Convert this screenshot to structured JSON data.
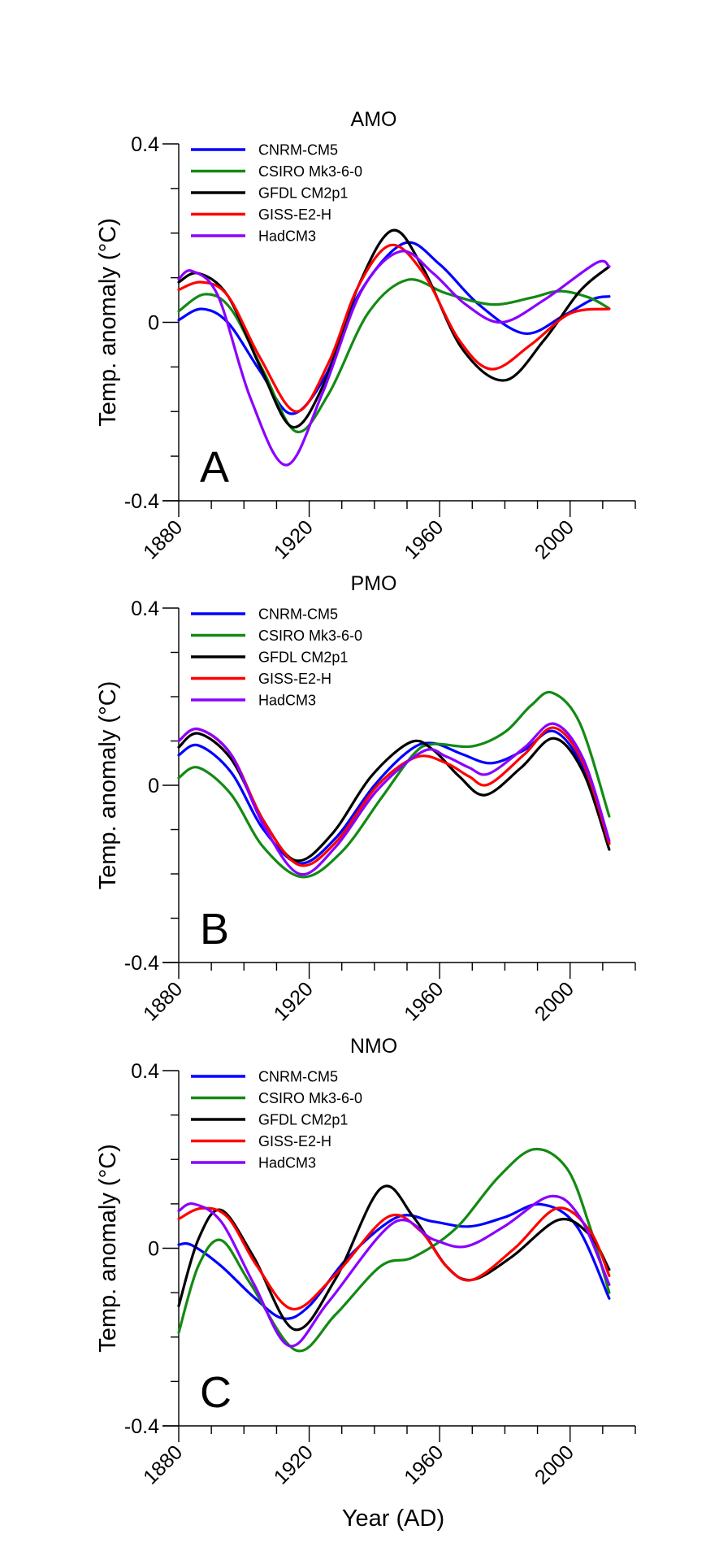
{
  "figure": {
    "shared_xlabel": "Year (AD)",
    "ylabel": "Temp. anomaly (°C)"
  },
  "chart_data": [
    {
      "type": "line",
      "panel_letter": "A",
      "title": "AMO",
      "xlabel": "Year (AD)",
      "ylabel": "Temp. anomaly (°C)",
      "xlim": [
        1880,
        2020
      ],
      "ylim": [
        -0.4,
        0.4
      ],
      "xticks": [
        1880,
        1920,
        1960,
        2000
      ],
      "xtick_labels": [
        "1880",
        "1920",
        "1960",
        "2000"
      ],
      "x_minor_step": 10,
      "yticks": [
        0.4,
        0,
        -0.4
      ],
      "ytick_labels": [
        "0.4",
        "0",
        "-0.4"
      ],
      "y_minor_step": 0.1,
      "grid": false,
      "legend_position": "top-left",
      "series": [
        {
          "name": "CNRM-CM5",
          "color": "#0000ff",
          "x": [
            1880,
            1887,
            1895,
            1905,
            1914.5,
            1925,
            1935,
            1949,
            1960,
            1972,
            1986,
            1998,
            2007,
            2012
          ],
          "y": [
            0.005,
            0.03,
            0.0,
            -0.11,
            -0.205,
            -0.12,
            0.06,
            0.177,
            0.13,
            0.04,
            -0.025,
            0.015,
            0.052,
            0.058
          ]
        },
        {
          "name": "CSIRO Mk3-6-0",
          "color": "#138a13",
          "x": [
            1880,
            1888,
            1896,
            1906,
            1916,
            1926,
            1938,
            1950,
            1962,
            1976,
            1988,
            1997,
            2006,
            2012
          ],
          "y": [
            0.025,
            0.063,
            0.03,
            -0.11,
            -0.245,
            -0.16,
            0.02,
            0.095,
            0.065,
            0.04,
            0.055,
            0.07,
            0.055,
            0.031
          ]
        },
        {
          "name": "GFDL CM2p1",
          "color": "#000000",
          "x": [
            1880,
            1886,
            1895,
            1905,
            1915,
            1925,
            1935,
            1945.5,
            1955,
            1967,
            1980,
            1992,
            2003,
            2012
          ],
          "y": [
            0.09,
            0.11,
            0.06,
            -0.1,
            -0.235,
            -0.13,
            0.08,
            0.206,
            0.12,
            -0.06,
            -0.13,
            -0.04,
            0.07,
            0.125
          ]
        },
        {
          "name": "GISS-E2-H",
          "color": "#ff0000",
          "x": [
            1880,
            1887,
            1895,
            1905,
            1916,
            1926,
            1935,
            1945,
            1955,
            1966,
            1976,
            1988,
            2000,
            2012
          ],
          "y": [
            0.073,
            0.09,
            0.06,
            -0.08,
            -0.2,
            -0.09,
            0.08,
            0.173,
            0.11,
            -0.04,
            -0.105,
            -0.05,
            0.02,
            0.03
          ]
        },
        {
          "name": "HadCM3",
          "color": "#8a00ff",
          "x": [
            1880,
            1884,
            1892,
            1902,
            1913,
            1924,
            1936,
            1948,
            1958,
            1968,
            1979,
            1992,
            2008,
            2012
          ],
          "y": [
            0.097,
            0.115,
            0.06,
            -0.17,
            -0.32,
            -0.16,
            0.07,
            0.159,
            0.11,
            0.04,
            0.0,
            0.05,
            0.133,
            0.125
          ]
        }
      ]
    },
    {
      "type": "line",
      "panel_letter": "B",
      "title": "PMO",
      "xlabel": "Year (AD)",
      "ylabel": "Temp. anomaly (°C)",
      "xlim": [
        1880,
        2020
      ],
      "ylim": [
        -0.4,
        0.4
      ],
      "xticks": [
        1880,
        1920,
        1960,
        2000
      ],
      "xtick_labels": [
        "1880",
        "1920",
        "1960",
        "2000"
      ],
      "x_minor_step": 10,
      "yticks": [
        0.4,
        0,
        -0.4
      ],
      "ytick_labels": [
        "0.4",
        "0",
        "-0.4"
      ],
      "y_minor_step": 0.1,
      "grid": false,
      "legend_position": "top-left",
      "series": [
        {
          "name": "CNRM-CM5",
          "color": "#0000ff",
          "x": [
            1880,
            1886,
            1896,
            1906,
            1917,
            1928,
            1940,
            1951,
            1958,
            1967,
            1976,
            1986,
            1995,
            2004,
            2012
          ],
          "y": [
            0.068,
            0.09,
            0.03,
            -0.1,
            -0.176,
            -0.12,
            0.0,
            0.08,
            0.095,
            0.07,
            0.05,
            0.08,
            0.122,
            0.04,
            -0.13
          ]
        },
        {
          "name": "CSIRO Mk3-6-0",
          "color": "#138a13",
          "x": [
            1880,
            1886,
            1896,
            1906,
            1918,
            1930,
            1942,
            1952,
            1958,
            1970,
            1980,
            1988,
            1994.5,
            2003,
            2012
          ],
          "y": [
            0.017,
            0.04,
            -0.02,
            -0.14,
            -0.207,
            -0.15,
            -0.03,
            0.07,
            0.093,
            0.088,
            0.12,
            0.18,
            0.209,
            0.14,
            -0.07
          ]
        },
        {
          "name": "GFDL CM2p1",
          "color": "#000000",
          "x": [
            1880,
            1886,
            1896,
            1906,
            1916,
            1927,
            1939,
            1951,
            1958,
            1966,
            1974,
            1985,
            1995,
            2004,
            2012
          ],
          "y": [
            0.086,
            0.117,
            0.06,
            -0.08,
            -0.17,
            -0.11,
            0.02,
            0.097,
            0.08,
            0.02,
            -0.022,
            0.04,
            0.106,
            0.03,
            -0.145
          ]
        },
        {
          "name": "GISS-E2-H",
          "color": "#ff0000",
          "x": [
            1880,
            1886,
            1896,
            1906,
            1917,
            1928,
            1941,
            1953,
            1962,
            1969,
            1975,
            1986,
            1995,
            2004,
            2012
          ],
          "y": [
            0.1,
            0.127,
            0.07,
            -0.08,
            -0.18,
            -0.13,
            0.0,
            0.064,
            0.05,
            0.02,
            0.002,
            0.07,
            0.13,
            0.05,
            -0.132
          ]
        },
        {
          "name": "HadCM3",
          "color": "#8a00ff",
          "x": [
            1880,
            1886,
            1896,
            1906,
            1917,
            1928,
            1941,
            1955,
            1962,
            1969,
            1975,
            1986,
            1995,
            2004,
            2012
          ],
          "y": [
            0.1,
            0.127,
            0.07,
            -0.09,
            -0.2,
            -0.14,
            -0.01,
            0.077,
            0.065,
            0.04,
            0.026,
            0.085,
            0.139,
            0.06,
            -0.125
          ]
        }
      ]
    },
    {
      "type": "line",
      "panel_letter": "C",
      "title": "NMO",
      "xlabel": "Year (AD)",
      "ylabel": "Temp. anomaly (°C)",
      "xlim": [
        1880,
        2020
      ],
      "ylim": [
        -0.4,
        0.4
      ],
      "xticks": [
        1880,
        1920,
        1960,
        2000
      ],
      "xtick_labels": [
        "1880",
        "1920",
        "1960",
        "2000"
      ],
      "x_minor_step": 10,
      "yticks": [
        0.4,
        0,
        -0.4
      ],
      "ytick_labels": [
        "0.4",
        "0",
        "-0.4"
      ],
      "y_minor_step": 0.1,
      "grid": false,
      "legend_position": "top-left",
      "series": [
        {
          "name": "CNRM-CM5",
          "color": "#0000ff",
          "x": [
            1880,
            1884,
            1893,
            1903,
            1912,
            1920,
            1932,
            1947,
            1958,
            1969,
            1980,
            1991,
            2002,
            2012
          ],
          "y": [
            0.008,
            0.007,
            -0.04,
            -0.11,
            -0.158,
            -0.13,
            -0.02,
            0.07,
            0.06,
            0.049,
            0.07,
            0.099,
            0.05,
            -0.113
          ]
        },
        {
          "name": "CSIRO Mk3-6-0",
          "color": "#138a13",
          "x": [
            1880,
            1886,
            1893,
            1902,
            1916,
            1928,
            1942,
            1952,
            1965,
            1978,
            1989,
            1999,
            2006,
            2012
          ],
          "y": [
            -0.19,
            -0.04,
            0.018,
            -0.08,
            -0.23,
            -0.15,
            -0.04,
            -0.02,
            0.045,
            0.16,
            0.223,
            0.18,
            0.05,
            -0.1
          ]
        },
        {
          "name": "GFDL CM2p1",
          "color": "#000000",
          "x": [
            1880,
            1886,
            1893,
            1903,
            1915.5,
            1928,
            1942,
            1952,
            1962,
            1970,
            1982,
            1996.5,
            2006,
            2012
          ],
          "y": [
            -0.13,
            0.02,
            0.086,
            -0.02,
            -0.183,
            -0.07,
            0.135,
            0.07,
            -0.04,
            -0.071,
            -0.02,
            0.064,
            0.03,
            -0.048
          ]
        },
        {
          "name": "GISS-E2-H",
          "color": "#ff0000",
          "x": [
            1880,
            1887,
            1895,
            1904,
            1915,
            1928,
            1944,
            1954,
            1962,
            1970,
            1983,
            1996,
            2006,
            2012
          ],
          "y": [
            0.066,
            0.09,
            0.07,
            -0.04,
            -0.137,
            -0.06,
            0.07,
            0.04,
            -0.04,
            -0.071,
            0.0,
            0.09,
            0.04,
            -0.062
          ]
        },
        {
          "name": "HadCM3",
          "color": "#8a00ff",
          "x": [
            1880,
            1884.5,
            1893,
            1903,
            1914,
            1926,
            1946,
            1958,
            1968,
            1980,
            1994,
            2003,
            2012
          ],
          "y": [
            0.084,
            0.1,
            0.06,
            -0.08,
            -0.22,
            -0.12,
            0.058,
            0.02,
            0.004,
            0.05,
            0.117,
            0.07,
            -0.082
          ]
        }
      ]
    }
  ]
}
